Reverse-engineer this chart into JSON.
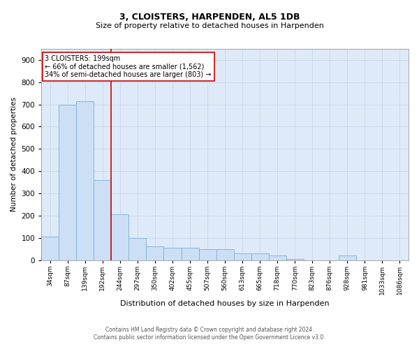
{
  "title": "3, CLOISTERS, HARPENDEN, AL5 1DB",
  "subtitle": "Size of property relative to detached houses in Harpenden",
  "xlabel": "Distribution of detached houses by size in Harpenden",
  "ylabel": "Number of detached properties",
  "footer_line1": "Contains HM Land Registry data © Crown copyright and database right 2024.",
  "footer_line2": "Contains public sector information licensed under the Open Government Licence v3.0.",
  "categories": [
    "34sqm",
    "87sqm",
    "139sqm",
    "192sqm",
    "244sqm",
    "297sqm",
    "350sqm",
    "402sqm",
    "455sqm",
    "507sqm",
    "560sqm",
    "613sqm",
    "665sqm",
    "718sqm",
    "770sqm",
    "823sqm",
    "876sqm",
    "928sqm",
    "981sqm",
    "1033sqm",
    "1086sqm"
  ],
  "values": [
    105,
    700,
    715,
    360,
    205,
    100,
    60,
    55,
    55,
    50,
    50,
    30,
    30,
    20,
    5,
    0,
    0,
    20,
    0,
    0,
    0
  ],
  "bar_color": "#ccdff5",
  "bar_edge_color": "#7bafd4",
  "grid_color": "#c8d8ec",
  "background_color": "#deeaf7",
  "property_line_color": "#cc0000",
  "property_line_index": 3,
  "annotation_text_line1": "3 CLOISTERS: 199sqm",
  "annotation_text_line2": "← 66% of detached houses are smaller (1,562)",
  "annotation_text_line3": "34% of semi-detached houses are larger (803) →",
  "annotation_box_facecolor": "#ffffff",
  "annotation_box_edgecolor": "#cc0000",
  "ylim": [
    0,
    950
  ],
  "yticks": [
    0,
    100,
    200,
    300,
    400,
    500,
    600,
    700,
    800,
    900
  ],
  "title_fontsize": 9,
  "subtitle_fontsize": 8,
  "xlabel_fontsize": 8,
  "ylabel_fontsize": 7.5,
  "xtick_fontsize": 6.5,
  "ytick_fontsize": 7.5,
  "annotation_fontsize": 7,
  "footer_fontsize": 5.5
}
